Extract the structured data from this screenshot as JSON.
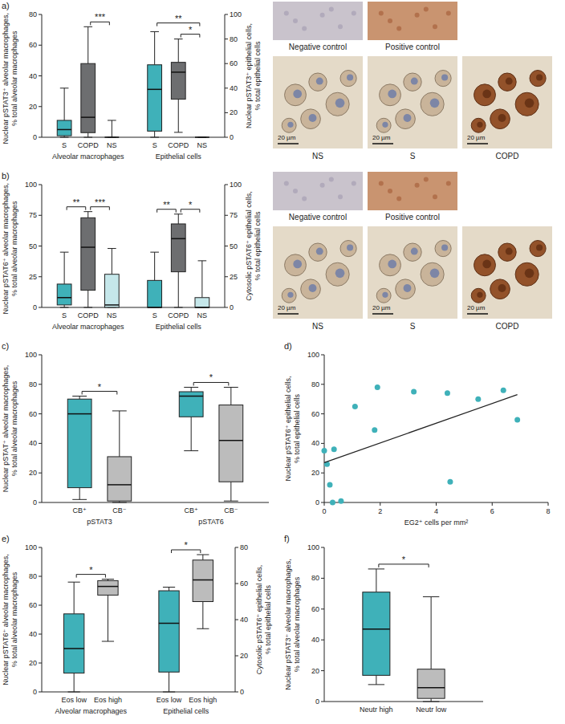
{
  "chart_data": [
    {
      "type": "box",
      "panel": "a)",
      "ylabel": "Nuclear pSTAT3⁺ alveolar macrophages, % total alveolar macrophages",
      "y2label": "Nuclear pSTAT3⁺ epithelial cells, % total epithelial cells",
      "ylim": [
        0,
        80
      ],
      "yticks": [
        0,
        20,
        40,
        60,
        80
      ],
      "y2lim": [
        0,
        100
      ],
      "y2ticks": [
        0,
        20,
        40,
        60,
        80,
        100
      ],
      "groups": [
        {
          "label": "Alveolar macrophages",
          "axis": "y",
          "boxes": [
            {
              "name": "S",
              "color": "#3fb1b9",
              "min": 0,
              "q1": 1,
              "median": 5,
              "q3": 11,
              "max": 32
            },
            {
              "name": "COPD",
              "color": "#6d6e70",
              "min": 0,
              "q1": 3,
              "median": 13,
              "q3": 48,
              "max": 72
            },
            {
              "name": "NS",
              "color": "#ffffff",
              "min": 0,
              "q1": 0,
              "median": 0,
              "q3": 0,
              "max": 11
            }
          ]
        },
        {
          "label": "Epithelial cells",
          "axis": "y2",
          "boxes": [
            {
              "name": "S",
              "color": "#3fb1b9",
              "min": 0,
              "q1": 5,
              "median": 39,
              "q3": 59,
              "max": 86
            },
            {
              "name": "COPD",
              "color": "#6d6e70",
              "min": 4,
              "q1": 31,
              "median": 53,
              "q3": 61,
              "max": 80
            },
            {
              "name": "NS",
              "color": "#ffffff",
              "min": 0,
              "q1": 0,
              "median": 0,
              "q3": 0,
              "max": 0
            }
          ]
        }
      ],
      "significance": [
        {
          "group": 0,
          "pair": [
            1,
            2
          ],
          "label": "***"
        },
        {
          "group": 1,
          "pair": [
            0,
            2
          ],
          "label": "**"
        },
        {
          "group": 1,
          "pair": [
            1,
            2
          ],
          "label": "*"
        }
      ],
      "images": {
        "controls": [
          "Negative control",
          "Positive control"
        ],
        "samples": [
          "NS",
          "S",
          "COPD"
        ],
        "scale_bar": "20 µm"
      }
    },
    {
      "type": "box",
      "panel": "b)",
      "ylabel": "Nuclear pSTAT6⁺ alveolar macrophages, % total alveolar macrophages",
      "y2label": "Cytosolic pSTAT6⁺ epithelial cells, % total epithelial cells",
      "ylim": [
        0,
        100
      ],
      "yticks": [
        0,
        25,
        50,
        75,
        100
      ],
      "y2lim": [
        0,
        100
      ],
      "y2ticks": [
        0,
        25,
        50,
        75,
        100
      ],
      "groups": [
        {
          "label": "Alveolar macrophages",
          "axis": "y",
          "boxes": [
            {
              "name": "S",
              "color": "#3fb1b9",
              "min": 0,
              "q1": 2,
              "median": 8,
              "q3": 19,
              "max": 45
            },
            {
              "name": "COPD",
              "color": "#6d6e70",
              "min": 0,
              "q1": 14,
              "median": 49,
              "q3": 73,
              "max": 78
            },
            {
              "name": "NS",
              "color": "#c5e7ea",
              "min": 0,
              "q1": 0,
              "median": 2,
              "q3": 27,
              "max": 48
            }
          ]
        },
        {
          "label": "Epithelial cells",
          "axis": "y2",
          "boxes": [
            {
              "name": "S",
              "color": "#3fb1b9",
              "min": 0,
              "q1": 0,
              "median": 0,
              "q3": 22,
              "max": 45
            },
            {
              "name": "COPD",
              "color": "#6d6e70",
              "min": 0,
              "q1": 29,
              "median": 56,
              "q3": 68,
              "max": 76
            },
            {
              "name": "NS",
              "color": "#c5e7ea",
              "min": 0,
              "q1": 0,
              "median": 0,
              "q3": 8,
              "max": 38
            }
          ]
        }
      ],
      "significance": [
        {
          "group": 0,
          "pair": [
            0,
            1
          ],
          "label": "**"
        },
        {
          "group": 0,
          "pair": [
            1,
            2
          ],
          "label": "***"
        },
        {
          "group": 1,
          "pair": [
            0,
            1
          ],
          "label": "**"
        },
        {
          "group": 1,
          "pair": [
            1,
            2
          ],
          "label": "*"
        }
      ],
      "images": {
        "controls": [
          "Negative control",
          "Positive control"
        ],
        "samples": [
          "NS",
          "S",
          "COPD"
        ],
        "scale_bar": "20 µm"
      }
    },
    {
      "type": "box",
      "panel": "c)",
      "ylabel": "Nuclear pSTAT⁺ alveolar macrophages, % total alveolar macrophages",
      "ylim": [
        0,
        100
      ],
      "yticks": [
        0,
        20,
        40,
        60,
        80,
        100
      ],
      "groups": [
        {
          "label": "pSTAT3",
          "axis": "y",
          "boxes": [
            {
              "name": "CB⁺",
              "color": "#3fb1b9",
              "min": 2,
              "q1": 10,
              "median": 60,
              "q3": 70,
              "max": 72
            },
            {
              "name": "CB⁻",
              "color": "#bcbcbc",
              "min": 0,
              "q1": 1,
              "median": 12,
              "q3": 31,
              "max": 62
            }
          ]
        },
        {
          "label": "pSTAT6",
          "axis": "y",
          "boxes": [
            {
              "name": "CB⁺",
              "color": "#3fb1b9",
              "min": 35,
              "q1": 58,
              "median": 72,
              "q3": 75,
              "max": 78
            },
            {
              "name": "CB⁻",
              "color": "#bcbcbc",
              "min": 1,
              "q1": 14,
              "median": 42,
              "q3": 66,
              "max": 78
            }
          ]
        }
      ],
      "significance": [
        {
          "group": 0,
          "pair": [
            0,
            1
          ],
          "label": "*"
        },
        {
          "group": 1,
          "pair": [
            0,
            1
          ],
          "label": "*"
        }
      ]
    },
    {
      "type": "scatter",
      "panel": "d)",
      "xlabel": "EG2⁺ cells per mm²",
      "ylabel": "Nuclear pSTAT6⁺ epithelial cells, % total epithelial cells",
      "xlim": [
        0,
        8
      ],
      "xticks": [
        0,
        2,
        4,
        6,
        8
      ],
      "ylim": [
        0,
        100
      ],
      "yticks": [
        0,
        20,
        40,
        60,
        80,
        100
      ],
      "color": "#3fb1b9",
      "x": [
        0,
        0.1,
        0.2,
        0.3,
        0.35,
        0.6,
        1.1,
        1.8,
        1.9,
        3.2,
        4.4,
        4.5,
        5.5,
        6.4,
        6.9
      ],
      "values": [
        35,
        26,
        12,
        0,
        36,
        1,
        65,
        49,
        78,
        75,
        74,
        14,
        70,
        76,
        56
      ],
      "trendline": {
        "x": [
          0,
          6.9
        ],
        "values": [
          27,
          73
        ]
      }
    },
    {
      "type": "box",
      "panel": "e)",
      "ylabel": "Nuclear pSTAT6⁺ alveolar macrophages, % total alveolar macrophages",
      "y2label": "Cytosolic pSTAT6⁺ epithelial cells, % total epithelial cells",
      "ylim": [
        0,
        100
      ],
      "yticks": [
        0,
        20,
        40,
        60,
        80,
        100
      ],
      "y2lim": [
        0,
        80
      ],
      "y2ticks": [
        0,
        20,
        40,
        60,
        80
      ],
      "groups": [
        {
          "label": "Alveolar macrophages",
          "axis": "y",
          "boxes": [
            {
              "name": "Eos low",
              "color": "#3fb1b9",
              "min": 0,
              "q1": 13,
              "median": 30,
              "q3": 54,
              "max": 76
            },
            {
              "name": "Eos high",
              "color": "#bcbcbc",
              "min": 35,
              "q1": 67,
              "median": 73,
              "q3": 77,
              "max": 78
            }
          ]
        },
        {
          "label": "Epithelial cells",
          "axis": "y2",
          "boxes": [
            {
              "name": "Eos low",
              "color": "#3fb1b9",
              "min": 0,
              "q1": 11,
              "median": 38,
              "q3": 56,
              "max": 58
            },
            {
              "name": "Eos high",
              "color": "#bcbcbc",
              "min": 35,
              "q1": 50,
              "median": 62,
              "q3": 73,
              "max": 76
            }
          ]
        }
      ],
      "significance": [
        {
          "group": 0,
          "pair": [
            0,
            1
          ],
          "label": "*"
        },
        {
          "group": 1,
          "pair": [
            0,
            1
          ],
          "label": "*"
        }
      ]
    },
    {
      "type": "box",
      "panel": "f)",
      "ylabel": "Nuclear pSTAT3⁺ alveolar macrophages, % total alveolar macrophages",
      "ylim": [
        0,
        100
      ],
      "yticks": [
        0,
        20,
        40,
        60,
        80,
        100
      ],
      "groups": [
        {
          "axis": "y",
          "boxes": [
            {
              "name": "Neutr high",
              "color": "#3fb1b9",
              "min": 11,
              "q1": 17,
              "median": 47,
              "q3": 71,
              "max": 86
            },
            {
              "name": "Neutr low",
              "color": "#bcbcbc",
              "min": 0,
              "q1": 2,
              "median": 9,
              "q3": 21,
              "max": 68
            }
          ]
        }
      ],
      "significance": [
        {
          "group": 0,
          "pair": [
            0,
            1
          ],
          "label": "*"
        }
      ]
    }
  ]
}
